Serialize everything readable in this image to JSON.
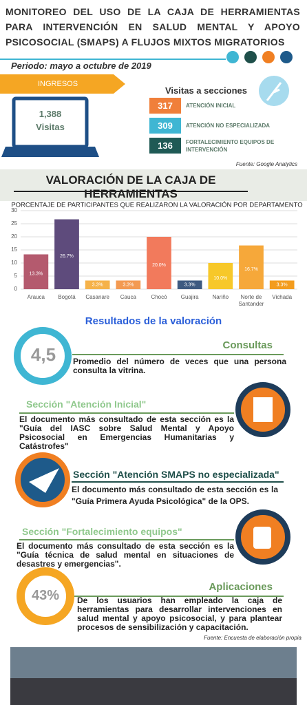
{
  "header": {
    "title": "MONITOREO DEL USO DE LA CAJA DE HERRAMIENTAS PARA INTERVENCIÓN EN SALUD MENTAL Y APOYO PSICOSOCIAL (SMAPS) A FLUJOS MIXTOS MIGRATORIOS",
    "period": "Periodo: mayo a octubre de 2019"
  },
  "ingresos": {
    "label": "INGRESOS",
    "count": "1,388",
    "unit": "Visitas"
  },
  "visitas": {
    "title": "Visitas a secciones",
    "rows": [
      {
        "value": "317",
        "label": "ATENCIÓN INICIAL",
        "color": "#f07f3a"
      },
      {
        "value": "309",
        "label": "ATENCIÓN NO ESPECIALIZADA",
        "color": "#3fb6d3"
      },
      {
        "value": "136",
        "label": "FORTALECIMIENTO EQUIPOS DE INTERVENCIÓN",
        "color": "#1f5a55"
      }
    ],
    "source": "Fuente: Google Analytics"
  },
  "section_title": "VALORACIÓN DE LA CAJA DE HERRAMIENTAS",
  "chart_data": {
    "type": "bar",
    "title": "PORCENTAJE DE PARTICIPANTES QUE REALIZARON LA VALORACIÓN POR DEPARTAMENTO",
    "categories": [
      "Arauca",
      "Bogotá",
      "Casanare",
      "Cauca",
      "Chocó",
      "Guajira",
      "Nariño",
      "Norte de Santander",
      "Vichada"
    ],
    "values": [
      13.3,
      26.7,
      3.3,
      3.3,
      20.0,
      3.3,
      10.0,
      16.7,
      3.3
    ],
    "value_labels": [
      "13.3%",
      "26.7%",
      "3.3%",
      "3.3%",
      "20.0%",
      "3.3%",
      "10.0%",
      "16.7%",
      "3.3%"
    ],
    "colors": [
      "#b45a6e",
      "#5e4b7c",
      "#f5b24a",
      "#f39a52",
      "#f27a5c",
      "#3d5a80",
      "#f7c82a",
      "#f6a83a",
      "#f39c1e"
    ],
    "ylim": [
      0,
      30
    ],
    "yticks": [
      0,
      5,
      10,
      15,
      20,
      25,
      30
    ],
    "grid": true
  },
  "results": {
    "title": "Resultados de la valoración",
    "consultas": {
      "value": "4,5",
      "title": "Consultas",
      "text": "Promedio del número de veces que una persona consulta la vitrina."
    },
    "atencion_inicial": {
      "title": "Sección \"Atención Inicial\"",
      "text": "El documento más consultado de esta sección es la \"Guía del IASC sobre Salud Mental y Apoyo Psicosocial en Emergencias Humanitarias y Catástrofes\""
    },
    "smaps": {
      "title": "Sección \"Atención SMAPS no especializada\"",
      "text": "El documento más consultado de esta sección es la \"Guía Primera Ayuda Psicológica\" de la OPS."
    },
    "fortalecimiento": {
      "title": "Sección \"Fortalecimiento equipos\"",
      "text": "El documento más consultado de esta sección es la \"Guía técnica de salud mental en situaciones de desastres y emergencias\"."
    },
    "aplicaciones": {
      "value": "43%",
      "title": "Aplicaciones",
      "text": "De los usuarios han empleado la caja de herramientas para desarrollar intervenciones en salud mental y apoyo psicosocial, y para plantear procesos de sensibilización y capacitación."
    },
    "source": "Fuente: Encuesta de elaboración propia"
  }
}
